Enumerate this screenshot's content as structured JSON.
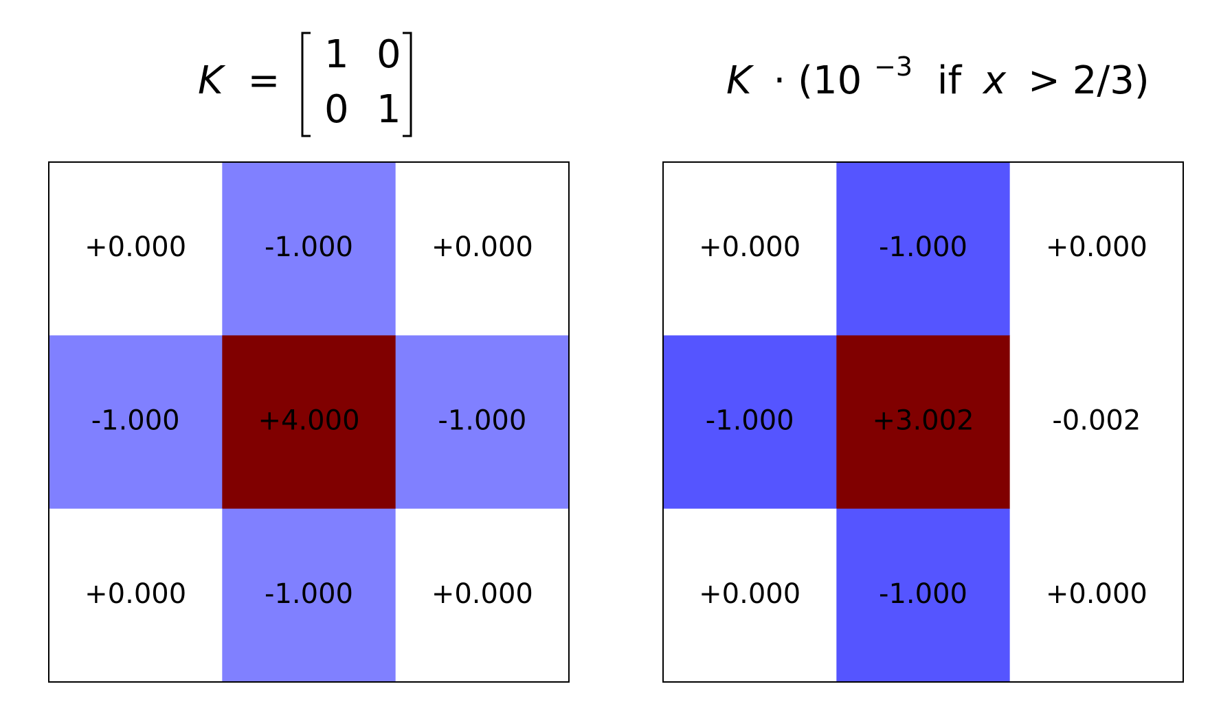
{
  "chart_data": [
    {
      "type": "heatmap",
      "title_parts": [
        "K",
        "="
      ],
      "title_matrix": [
        [
          "1",
          "0"
        ],
        [
          "0",
          "1"
        ]
      ],
      "values": [
        [
          0,
          -1,
          0
        ],
        [
          -1,
          4,
          -1
        ],
        [
          0,
          -1,
          0
        ]
      ],
      "value_labels": [
        [
          "+0.000",
          "-1.000",
          "+0.000"
        ],
        [
          "-1.000",
          "+4.000",
          "-1.000"
        ],
        [
          "+0.000",
          "-1.000",
          "+0.000"
        ]
      ],
      "colormap": [
        "#00004c",
        "#0000ff",
        "#ffffff",
        "#ff0000",
        "#800000"
      ],
      "clim": [
        -4,
        4
      ]
    },
    {
      "type": "heatmap",
      "title_parts": [
        "K",
        "· (10",
        "−3",
        "if",
        "x",
        "> 2/3)"
      ],
      "values": [
        [
          0,
          -1,
          0
        ],
        [
          -1,
          3.002,
          -0.002
        ],
        [
          0,
          -1,
          0
        ]
      ],
      "value_labels": [
        [
          "+0.000",
          "-1.000",
          "+0.000"
        ],
        [
          "-1.000",
          "+3.002",
          "-0.002"
        ],
        [
          "+0.000",
          "-1.000",
          "+0.000"
        ]
      ],
      "colormap": [
        "#00004c",
        "#0000ff",
        "#ffffff",
        "#ff0000",
        "#800000"
      ],
      "clim": [
        -3.002,
        3.002
      ]
    }
  ]
}
